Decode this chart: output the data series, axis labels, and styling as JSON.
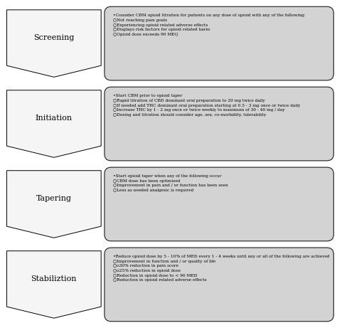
{
  "background_color": "#ffffff",
  "box_fill_color": "#d3d3d3",
  "box_edge_color": "#000000",
  "chevron_fill_color": "#f5f5f5",
  "chevron_edge_color": "#000000",
  "stages": [
    "Screening",
    "Initiation",
    "Tapering",
    "Stabiliztion"
  ],
  "texts": [
    "•Consider CBM opioid titration for patients on any dose of opioid with any of the following:\n○Not reaching pain goals\n○Experiencing opioid related adverse effects\n○Displays risk factors for opioid related harm\n○Opioid dose exceeds 90 MEQ",
    "•Start CBM prior to opioid taper\n○Rapid titration of CBD dominant oral preparation to 20 mg twice daily\n○If needed add THC dominant oral preparation starting at 0.5 - 3 mg once or twice daily\n○Increase THC by 1 - 2 mg once or twice weekly to maximum of 30 - 40 mg / day\n○Dosing and titration should consider age, sex, co-morbidity, tolerability",
    "•Start opioid taper when any of the following occur\n○CBM dose has been optimized\n○Improvement in pain and / or function has been seen\n○Less as needed analgesic is required",
    "•Reduce opioid dose by 5 - 10% of MED every 1 - 4 weeks until any or all of the following are achieved\n○Improvement in function and / or quality of life\n○o30% reduction in pain score\n○o25% reduction in opioid dose\n○Reduction in opioid dose to < 90 MED\n○Reduction in opioid related adverse effects"
  ],
  "figsize": [
    4.74,
    4.61
  ],
  "dpi": 100
}
